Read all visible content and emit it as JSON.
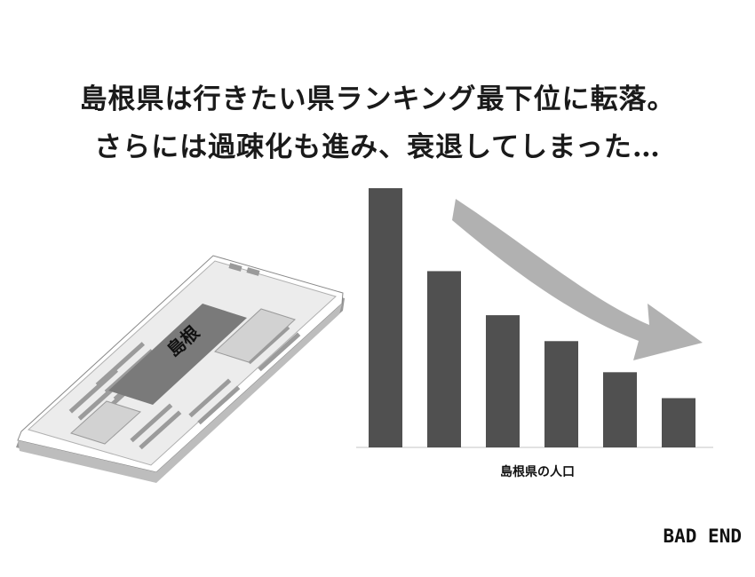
{
  "headline": {
    "line1": "島根県は行きたい県ランキング最下位に転落。",
    "line2": "さらには過疎化も進み、衰退してしまった…"
  },
  "newspaper": {
    "icon": "newspaper-icon",
    "headline_text": "島根"
  },
  "chart_data": {
    "type": "bar",
    "xlabel": "島根県の人口",
    "values": [
      100,
      68,
      51,
      41,
      29,
      19
    ],
    "trend": "decreasing",
    "bar_color": "#505050",
    "arrow_color": "#a8a8a8"
  },
  "ending": "BAD END"
}
